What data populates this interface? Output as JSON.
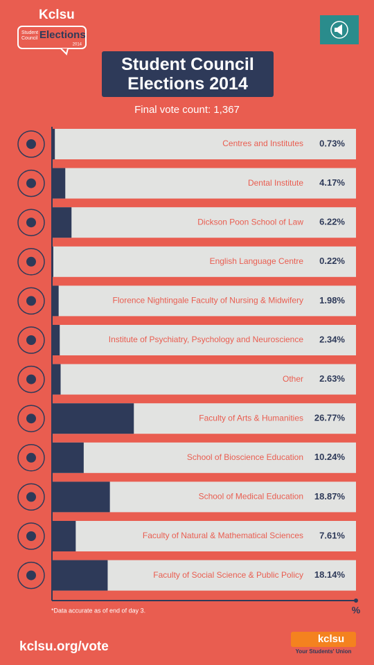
{
  "logo": {
    "brand": "Kclsu",
    "line1": "Student",
    "line2": "Council",
    "line3": "Elections",
    "year": "2014"
  },
  "chart_data": {
    "type": "hbar",
    "title": "Student Council Elections 2014",
    "subtitle": "Final vote count: 1,367",
    "categories": [
      "Centres and Institutes",
      "Dental Institute",
      "Dickson Poon School of Law",
      "English Language Centre",
      "Florence Nightingale Faculty of Nursing & Midwifery",
      "Institute of Psychiatry, Psychology and Neuroscience",
      "Other",
      "Faculty of Arts & Humanities",
      "School of Bioscience Education",
      "School of Medical Education",
      "Faculty of Natural & Mathematical Sciences",
      "Faculty of Social Science & Public Policy"
    ],
    "values": [
      0.73,
      4.17,
      6.22,
      0.22,
      1.98,
      2.34,
      2.63,
      26.77,
      10.24,
      18.87,
      7.61,
      18.14
    ],
    "value_labels": [
      "0.73%",
      "4.17%",
      "6.22%",
      "0.22%",
      "1.98%",
      "2.34%",
      "2.63%",
      "26.77%",
      "10.24%",
      "18.87%",
      "7.61%",
      "18.14%"
    ],
    "color": "#2e3a59",
    "track_color": "#e2e3e1",
    "xlim": [
      0,
      100
    ],
    "xlabel": "%",
    "footnote": "*Data accurate as of end of day 3."
  },
  "footer": {
    "url": "kclsu.org/vote",
    "brand": "kclsu",
    "tagline": "Your Students' Union"
  }
}
